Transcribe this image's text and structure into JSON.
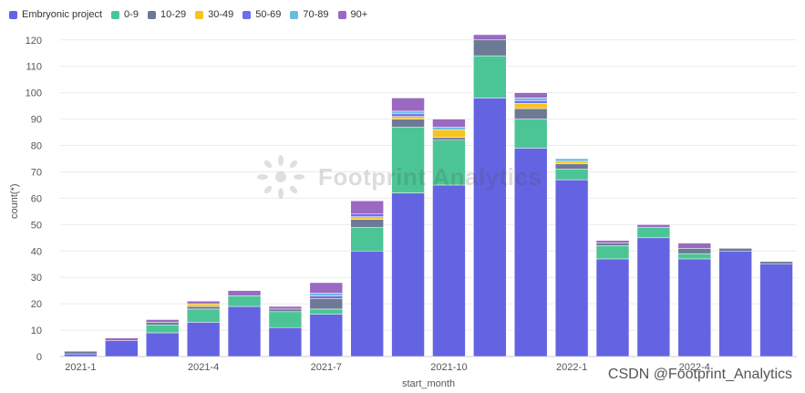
{
  "chart_data": {
    "type": "bar",
    "stacked": true,
    "categories": [
      "2021-1",
      "2021-2",
      "2021-3",
      "2021-4",
      "2021-5",
      "2021-6",
      "2021-7",
      "2021-8",
      "2021-9",
      "2021-10",
      "2021-11",
      "2021-12",
      "2022-1",
      "2022-2",
      "2022-3",
      "2022-4",
      "2022-5",
      "2022-6"
    ],
    "x_tick_labels": [
      "2021-1",
      "",
      "",
      "2021-4",
      "",
      "",
      "2021-7",
      "",
      "",
      "2021-10",
      "",
      "",
      "2022-1",
      "",
      "",
      "2022-4",
      "",
      ""
    ],
    "series": [
      {
        "name": "Embryonic project",
        "color": "#6464e2",
        "values": [
          1,
          6,
          9,
          13,
          19,
          11,
          16,
          40,
          62,
          65,
          98,
          79,
          67,
          37,
          45,
          37,
          40,
          35
        ]
      },
      {
        "name": "0-9",
        "color": "#4cc596",
        "values": [
          0,
          0,
          3,
          5,
          4,
          6,
          2,
          9,
          25,
          17,
          16,
          11,
          4,
          5,
          4,
          2,
          0,
          0
        ]
      },
      {
        "name": "10-29",
        "color": "#6d7a96",
        "values": [
          1,
          0,
          1,
          1,
          0,
          1,
          4,
          3,
          3,
          1,
          6,
          4,
          2,
          1,
          0,
          2,
          1,
          1
        ]
      },
      {
        "name": "30-49",
        "color": "#f5c423",
        "values": [
          0,
          0,
          0,
          1,
          0,
          0,
          0,
          1,
          1,
          3,
          0,
          2,
          1,
          0,
          0,
          0,
          0,
          0
        ]
      },
      {
        "name": "50-69",
        "color": "#6f6cf0",
        "values": [
          0,
          0,
          0,
          0,
          0,
          0,
          1,
          1,
          1,
          0,
          0,
          1,
          0,
          0,
          0,
          0,
          0,
          0
        ]
      },
      {
        "name": "70-89",
        "color": "#6abbe0",
        "values": [
          0,
          0,
          0,
          0,
          0,
          0,
          1,
          0,
          1,
          1,
          0,
          1,
          1,
          0,
          0,
          0,
          0,
          0
        ]
      },
      {
        "name": "90+",
        "color": "#9a69c1",
        "values": [
          0,
          1,
          1,
          1,
          2,
          1,
          4,
          5,
          5,
          3,
          2,
          2,
          0,
          1,
          1,
          2,
          0,
          0
        ]
      }
    ],
    "xlabel": "start_month",
    "ylabel": "count(*)",
    "ylim": [
      0,
      122
    ],
    "y_ticks": [
      0,
      10,
      20,
      30,
      40,
      50,
      60,
      70,
      80,
      90,
      100,
      110,
      120
    ],
    "grid": true,
    "legend_position": "top-left"
  },
  "watermark": {
    "text": "Footprint Analytics"
  },
  "credit": {
    "text": "CSDN @Footprint_Analytics"
  }
}
